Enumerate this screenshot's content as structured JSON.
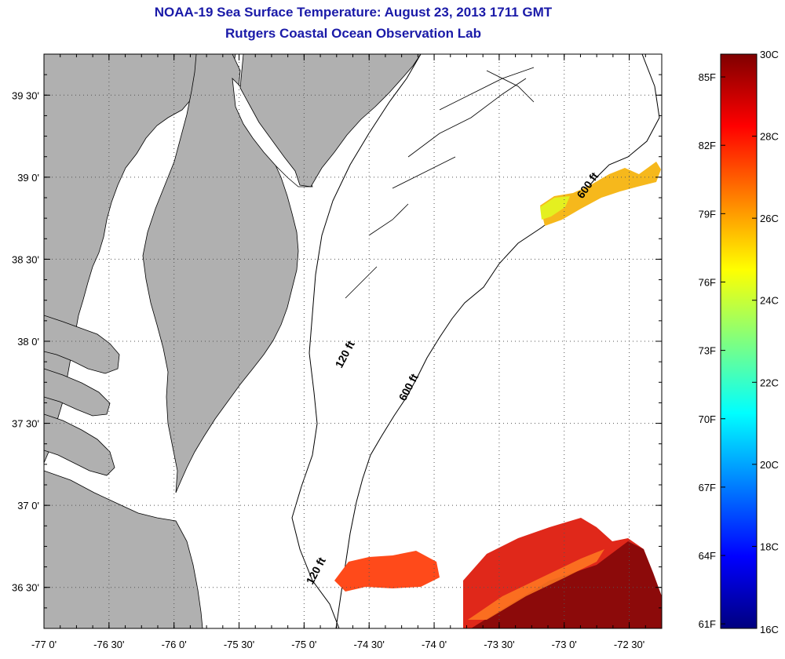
{
  "title": "NOAA-19 Sea Surface Temperature:  August 23, 2013 1711 GMT",
  "subtitle": "Rutgers Coastal Ocean Observation Lab",
  "map": {
    "lon_range": [
      -77.0,
      -72.25
    ],
    "lat_range": [
      36.25,
      39.75
    ],
    "lon_ticks": [
      {
        "value": -77.0,
        "label": "-77 0'"
      },
      {
        "value": -76.5,
        "label": "-76 30'"
      },
      {
        "value": -76.0,
        "label": "-76 0'"
      },
      {
        "value": -75.5,
        "label": "-75 30'"
      },
      {
        "value": -75.0,
        "label": "-75 0'"
      },
      {
        "value": -74.5,
        "label": "-74 30'"
      },
      {
        "value": -74.0,
        "label": "-74 0'"
      },
      {
        "value": -73.5,
        "label": "-73 30'"
      },
      {
        "value": -73.0,
        "label": "-73 0'"
      },
      {
        "value": -72.5,
        "label": "-72 30'"
      }
    ],
    "lat_ticks": [
      {
        "value": 39.5,
        "label": "39 30'"
      },
      {
        "value": 39.0,
        "label": "39 0'"
      },
      {
        "value": 38.5,
        "label": "38 30'"
      },
      {
        "value": 38.0,
        "label": "38 0'"
      },
      {
        "value": 37.5,
        "label": "37 30'"
      },
      {
        "value": 37.0,
        "label": "37 0'"
      },
      {
        "value": 36.5,
        "label": "36 30'"
      }
    ],
    "contour_labels": [
      "120 ft",
      "600 ft",
      "600 ft",
      "120 ft"
    ],
    "colors": {
      "land": "#b0b0b0",
      "ocean": "#ffffff",
      "grid": "#555555"
    }
  },
  "colorbar": {
    "min_c": 16,
    "max_c": 30,
    "celsius_labels": [
      "30C",
      "28C",
      "26C",
      "24C",
      "22C",
      "20C",
      "18C",
      "16C"
    ],
    "fahrenheit_labels": [
      "85F",
      "82F",
      "79F",
      "76F",
      "73F",
      "70F",
      "67F",
      "64F",
      "61F"
    ]
  }
}
